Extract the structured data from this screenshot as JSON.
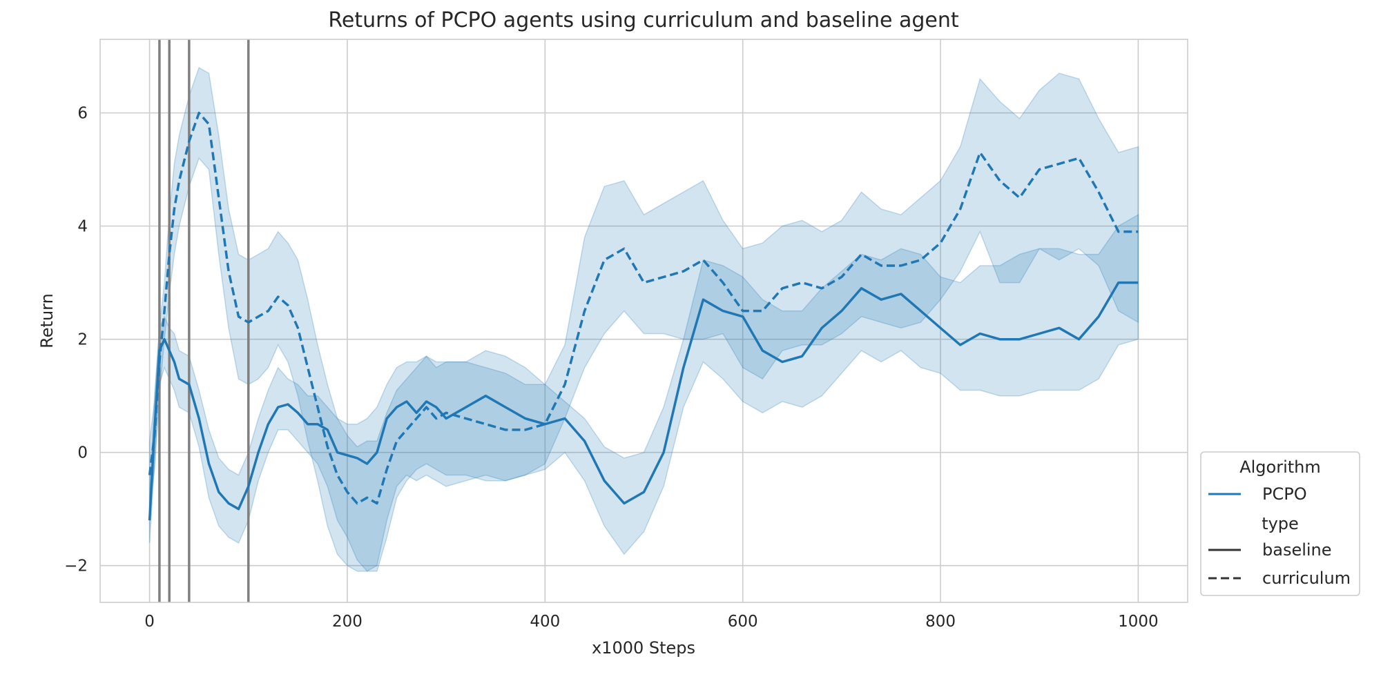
{
  "colors": {
    "series": "#1f77b4",
    "band": "#1f77b4",
    "grid": "#cccccc",
    "markers": "#808080",
    "legend_dark": "#333333",
    "text": "#262626"
  },
  "chart_data": {
    "type": "line",
    "title": "Returns of PCPO agents using curriculum and baseline agent",
    "xlabel": "x1000 Steps",
    "ylabel": "Return",
    "xlim": [
      -50,
      1050
    ],
    "ylim": [
      -2.65,
      7.3
    ],
    "xticks": [
      0,
      200,
      400,
      600,
      800,
      1000
    ],
    "yticks": [
      -2,
      0,
      2,
      4,
      6
    ],
    "ytick_labels": [
      "−2",
      "0",
      "2",
      "4",
      "6"
    ],
    "grid": true,
    "legend_position": "outside-right-bottom",
    "vertical_markers": [
      10,
      20,
      40,
      100
    ],
    "legend": {
      "title_algorithm": "Algorithm",
      "algorithm": "PCPO",
      "title_type": "type",
      "type_baseline": "baseline",
      "type_curriculum": "curriculum"
    },
    "series": [
      {
        "name": "baseline",
        "style": "solid",
        "x": [
          0,
          5,
          10,
          15,
          20,
          25,
          30,
          40,
          50,
          60,
          70,
          80,
          90,
          100,
          110,
          120,
          130,
          140,
          150,
          160,
          170,
          180,
          190,
          200,
          210,
          220,
          230,
          240,
          250,
          260,
          270,
          280,
          290,
          300,
          320,
          340,
          360,
          380,
          400,
          420,
          440,
          460,
          480,
          500,
          520,
          540,
          560,
          580,
          600,
          620,
          640,
          660,
          680,
          700,
          720,
          740,
          760,
          780,
          800,
          820,
          840,
          860,
          880,
          900,
          920,
          940,
          960,
          980,
          1000
        ],
        "mean": [
          -1.2,
          0.4,
          1.8,
          2.0,
          1.8,
          1.6,
          1.3,
          1.2,
          0.6,
          -0.2,
          -0.7,
          -0.9,
          -1.0,
          -0.6,
          0.0,
          0.5,
          0.8,
          0.85,
          0.7,
          0.5,
          0.5,
          0.4,
          0.0,
          -0.05,
          -0.1,
          -0.2,
          0.0,
          0.6,
          0.8,
          0.9,
          0.7,
          0.9,
          0.8,
          0.6,
          0.8,
          1.0,
          0.8,
          0.6,
          0.5,
          0.6,
          0.2,
          -0.5,
          -0.9,
          -0.7,
          0.0,
          1.5,
          2.7,
          2.5,
          2.4,
          1.8,
          1.6,
          1.7,
          2.2,
          2.5,
          2.9,
          2.7,
          2.8,
          2.5,
          2.2,
          1.9,
          2.1,
          2.0,
          2.0,
          2.1,
          2.2,
          2.0,
          2.4,
          3.0,
          3.0
        ],
        "lower": [
          -1.6,
          -0.2,
          1.2,
          1.5,
          1.3,
          1.1,
          0.8,
          0.7,
          0.1,
          -0.8,
          -1.3,
          -1.5,
          -1.6,
          -1.2,
          -0.5,
          0.0,
          0.4,
          0.4,
          0.2,
          0.0,
          -0.2,
          -0.6,
          -1.2,
          -1.5,
          -1.9,
          -2.1,
          -2.0,
          -1.2,
          -0.6,
          -0.4,
          -0.5,
          -0.4,
          -0.5,
          -0.6,
          -0.5,
          -0.4,
          -0.5,
          -0.4,
          -0.3,
          0.0,
          -0.5,
          -1.3,
          -1.8,
          -1.4,
          -0.6,
          0.8,
          1.6,
          1.3,
          0.9,
          0.7,
          0.9,
          0.8,
          1.0,
          1.4,
          1.8,
          1.6,
          1.8,
          1.5,
          1.4,
          1.1,
          1.1,
          1.0,
          1.0,
          1.1,
          1.1,
          1.1,
          1.3,
          1.9,
          2.0
        ],
        "upper": [
          -0.8,
          1.0,
          2.2,
          2.4,
          2.2,
          2.1,
          1.8,
          1.7,
          1.1,
          0.4,
          -0.1,
          -0.3,
          -0.4,
          0.0,
          0.6,
          1.1,
          1.5,
          1.3,
          1.2,
          1.0,
          1.0,
          0.8,
          0.6,
          0.5,
          0.5,
          0.6,
          0.8,
          1.2,
          1.5,
          1.6,
          1.6,
          1.7,
          1.6,
          1.6,
          1.6,
          1.8,
          1.7,
          1.5,
          1.2,
          0.9,
          0.6,
          0.1,
          -0.1,
          0.0,
          0.8,
          2.0,
          3.4,
          3.3,
          3.1,
          2.7,
          2.5,
          2.5,
          2.9,
          3.2,
          3.5,
          3.4,
          3.6,
          3.5,
          3.1,
          3.0,
          3.3,
          3.3,
          3.5,
          3.6,
          3.6,
          3.5,
          3.5,
          4.0,
          4.2
        ]
      },
      {
        "name": "curriculum",
        "style": "dashed",
        "x": [
          0,
          5,
          10,
          15,
          20,
          25,
          30,
          40,
          50,
          60,
          70,
          80,
          90,
          100,
          110,
          120,
          130,
          140,
          150,
          160,
          170,
          180,
          190,
          200,
          210,
          220,
          230,
          240,
          250,
          260,
          270,
          280,
          290,
          300,
          320,
          340,
          360,
          380,
          400,
          420,
          440,
          460,
          480,
          500,
          520,
          540,
          560,
          580,
          600,
          620,
          640,
          660,
          680,
          700,
          720,
          740,
          760,
          780,
          800,
          820,
          840,
          860,
          880,
          900,
          920,
          940,
          960,
          980,
          1000
        ],
        "mean": [
          -0.4,
          0.3,
          1.6,
          2.5,
          3.5,
          4.3,
          4.8,
          5.5,
          6.0,
          5.8,
          4.5,
          3.2,
          2.4,
          2.3,
          2.4,
          2.5,
          2.75,
          2.6,
          2.2,
          1.5,
          0.8,
          0.1,
          -0.4,
          -0.7,
          -0.9,
          -0.8,
          -0.9,
          -0.3,
          0.2,
          0.4,
          0.6,
          0.8,
          0.6,
          0.7,
          0.6,
          0.5,
          0.4,
          0.4,
          0.5,
          1.2,
          2.5,
          3.4,
          3.6,
          3.0,
          3.1,
          3.2,
          3.4,
          3.0,
          2.5,
          2.5,
          2.9,
          3.0,
          2.9,
          3.1,
          3.5,
          3.3,
          3.3,
          3.4,
          3.7,
          4.3,
          5.3,
          4.8,
          4.5,
          5.0,
          5.1,
          5.2,
          4.6,
          3.9,
          3.9
        ],
        "lower": [
          -1.0,
          -0.3,
          1.0,
          2.0,
          2.8,
          3.5,
          4.0,
          4.7,
          5.2,
          5.0,
          3.5,
          2.2,
          1.3,
          1.2,
          1.3,
          1.5,
          1.9,
          1.6,
          1.0,
          0.2,
          -0.5,
          -1.3,
          -1.8,
          -2.0,
          -2.1,
          -2.1,
          -2.1,
          -1.5,
          -0.8,
          -0.5,
          -0.3,
          -0.2,
          -0.3,
          -0.4,
          -0.4,
          -0.5,
          -0.5,
          -0.4,
          -0.2,
          0.6,
          1.5,
          2.1,
          2.5,
          2.1,
          2.1,
          2.0,
          2.0,
          2.1,
          1.5,
          1.3,
          1.8,
          1.9,
          1.9,
          2.1,
          2.4,
          2.3,
          2.2,
          2.3,
          2.7,
          3.2,
          3.9,
          3.0,
          3.0,
          3.6,
          3.4,
          3.6,
          3.3,
          2.5,
          2.3
        ],
        "upper": [
          0.2,
          0.9,
          2.2,
          3.0,
          4.2,
          5.1,
          5.6,
          6.3,
          6.8,
          6.7,
          5.6,
          4.3,
          3.5,
          3.4,
          3.5,
          3.6,
          3.9,
          3.7,
          3.4,
          2.7,
          1.9,
          1.2,
          0.6,
          0.3,
          0.1,
          0.2,
          0.2,
          0.7,
          1.1,
          1.3,
          1.5,
          1.7,
          1.5,
          1.6,
          1.6,
          1.5,
          1.4,
          1.2,
          1.2,
          1.9,
          3.8,
          4.7,
          4.8,
          4.2,
          4.4,
          4.6,
          4.8,
          4.1,
          3.6,
          3.7,
          4.0,
          4.1,
          3.9,
          4.1,
          4.6,
          4.3,
          4.2,
          4.5,
          4.8,
          5.4,
          6.6,
          6.2,
          5.9,
          6.4,
          6.7,
          6.6,
          5.9,
          5.3,
          5.4
        ]
      }
    ]
  }
}
